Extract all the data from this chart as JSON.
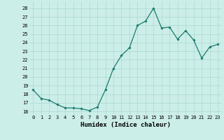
{
  "x": [
    0,
    1,
    2,
    3,
    4,
    5,
    6,
    7,
    8,
    9,
    10,
    11,
    12,
    13,
    14,
    15,
    16,
    17,
    18,
    19,
    20,
    21,
    22,
    23
  ],
  "y": [
    18.5,
    17.5,
    17.3,
    16.8,
    16.4,
    16.4,
    16.3,
    16.1,
    16.5,
    18.5,
    21.0,
    22.5,
    23.4,
    26.0,
    26.5,
    28.0,
    25.7,
    25.8,
    24.4,
    25.4,
    24.3,
    22.2,
    23.5,
    23.8
  ],
  "line_color": "#1a7a6e",
  "marker": "D",
  "marker_size": 1.8,
  "bg_color": "#cceee8",
  "grid_color": "#aad8d2",
  "tick_label_color": "#000000",
  "xlabel": "Humidex (Indice chaleur)",
  "xlabel_fontsize": 6.5,
  "tick_fontsize": 5.0,
  "yticks": [
    16,
    17,
    18,
    19,
    20,
    21,
    22,
    23,
    24,
    25,
    26,
    27,
    28
  ],
  "ylim": [
    15.6,
    28.8
  ],
  "xlim": [
    -0.5,
    23.5
  ]
}
